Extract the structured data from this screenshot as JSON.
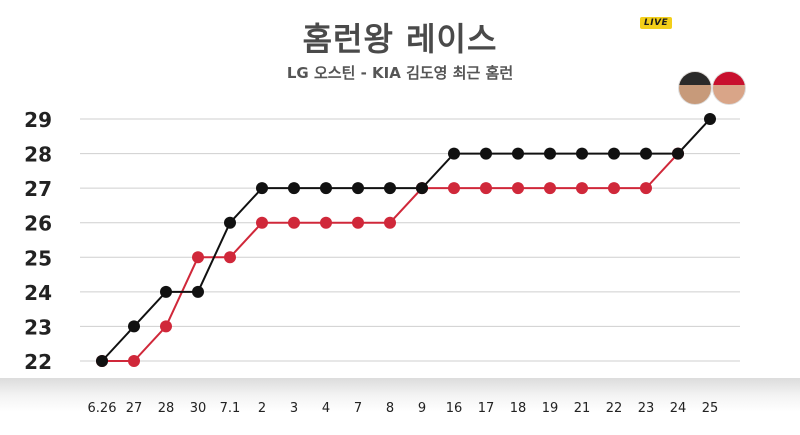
{
  "header": {
    "title": "홈런왕 레이스",
    "subtitle": "LG 오스틴 - KIA 김도영 최근 홈런",
    "live_badge": "LIVE"
  },
  "colors": {
    "series_black": "#111111",
    "series_red": "#d0283a",
    "grid": "#cfcfcf",
    "text": "#222222"
  },
  "chart_data": {
    "type": "line",
    "title": "홈런왕 레이스",
    "subtitle": "LG 오스틴 - KIA 김도영 최근 홈런",
    "categories": [
      "6.26",
      "27",
      "28",
      "30",
      "7.1",
      "2",
      "3",
      "4",
      "7",
      "8",
      "9",
      "16",
      "17",
      "18",
      "19",
      "21",
      "22",
      "23",
      "24",
      "25"
    ],
    "series": [
      {
        "color": "#111111",
        "values": [
          22,
          23,
          24,
          24,
          26,
          27,
          27,
          27,
          27,
          27,
          27,
          28,
          28,
          28,
          28,
          28,
          28,
          28,
          28,
          29
        ]
      },
      {
        "color": "#d0283a",
        "values": [
          22,
          22,
          23,
          25,
          25,
          26,
          26,
          26,
          26,
          26,
          27,
          27,
          27,
          27,
          27,
          27,
          27,
          27,
          28,
          null
        ]
      }
    ],
    "yticks": [
      22,
      23,
      24,
      25,
      26,
      27,
      28,
      29
    ],
    "ylim": [
      22,
      29
    ],
    "xlabel": "",
    "ylabel": "",
    "grid": true,
    "legend": "top-right avatars"
  }
}
